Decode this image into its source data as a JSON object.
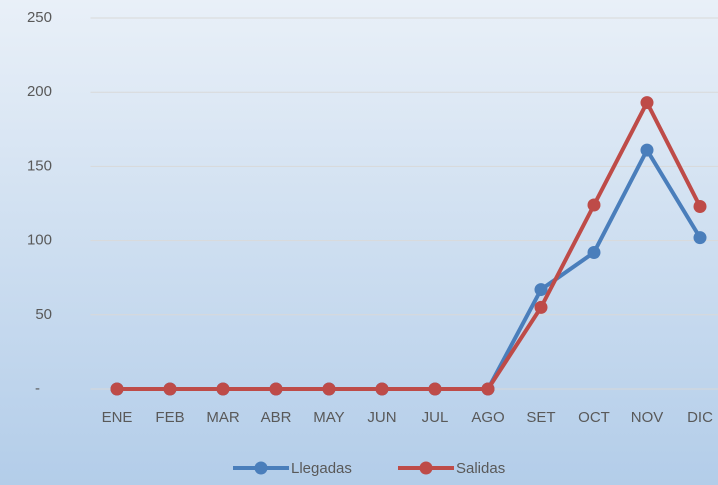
{
  "chart_data": {
    "type": "line",
    "categories": [
      "ENE",
      "FEB",
      "MAR",
      "ABR",
      "MAY",
      "JUN",
      "JUL",
      "AGO",
      "SET",
      "OCT",
      "NOV",
      "DIC"
    ],
    "series": [
      {
        "name": "Llegadas",
        "color": "#4a7ebb",
        "values": [
          0,
          0,
          0,
          0,
          0,
          0,
          0,
          0,
          67,
          92,
          161,
          102
        ]
      },
      {
        "name": "Salidas",
        "color": "#be4b48",
        "values": [
          0,
          0,
          0,
          0,
          0,
          0,
          0,
          0,
          55,
          124,
          193,
          123
        ]
      }
    ],
    "ylim": [
      0,
      250
    ],
    "yticks": [
      {
        "value": 0,
        "label": "-"
      },
      50,
      100,
      150,
      200,
      250
    ],
    "grid": true,
    "legend": "bottom"
  }
}
